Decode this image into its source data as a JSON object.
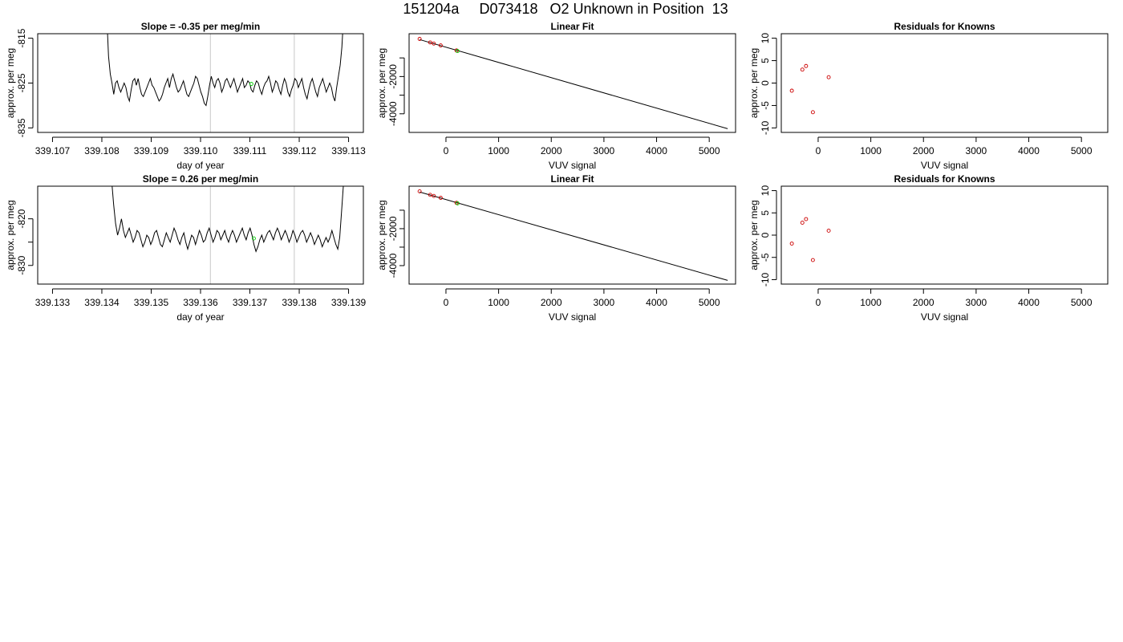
{
  "page": {
    "title": "151204a     D073418   O2 Unknown in Position  13"
  },
  "chart_data": [
    {
      "id": "slope1",
      "type": "line",
      "title": "Slope =  -0.35  per meg/min",
      "xlabel": "day of year",
      "ylabel": "approx. per meg",
      "xlim": [
        339.1067,
        339.1133
      ],
      "ylim": [
        -836,
        -814
      ],
      "xticks": [
        339.107,
        339.108,
        339.109,
        339.11,
        339.111,
        339.112,
        339.113
      ],
      "xtick_labels": [
        "339.107",
        "339.108",
        "339.109",
        "339.110",
        "339.111",
        "339.112",
        "339.113"
      ],
      "yticks": [
        -835,
        -825,
        -815
      ],
      "ytick_labels": [
        "-835",
        "-825",
        "-815"
      ],
      "grid": false,
      "vlines": [
        339.1102,
        339.1119
      ],
      "series": [
        {
          "color": "#000000",
          "x_start": 339.1081,
          "x_end": 339.1129,
          "values": [
            -810,
            -819,
            -823,
            -825,
            -827.5,
            -825,
            -824.5,
            -826,
            -827,
            -826,
            -825,
            -826,
            -828,
            -829,
            -826.5,
            -824.5,
            -824,
            -825.5,
            -824,
            -826,
            -827.5,
            -828,
            -827,
            -826,
            -825,
            -824,
            -825.5,
            -826,
            -827,
            -828,
            -829,
            -828.5,
            -827.5,
            -826,
            -825,
            -824,
            -826,
            -824,
            -823,
            -824.5,
            -826,
            -827,
            -826.5,
            -825.5,
            -824.5,
            -826,
            -827.5,
            -828,
            -827,
            -826,
            -825,
            -823.5,
            -824,
            -825.5,
            -827,
            -828,
            -829.5,
            -830,
            -828,
            -825.5,
            -823.5,
            -825,
            -826,
            -824.5,
            -824,
            -825,
            -827,
            -826,
            -824.5,
            -824,
            -825,
            -826,
            -825,
            -824,
            -825.5,
            -827,
            -826,
            -825,
            -824,
            -826,
            -825.5,
            -824.5,
            -825,
            -826.5,
            -827,
            -825.5,
            -824.5,
            -825,
            -826.5,
            -827.5,
            -826,
            -825,
            -824.5,
            -823.5,
            -825,
            -827,
            -826,
            -824.5,
            -825,
            -826.5,
            -827.5,
            -825.5,
            -824,
            -825,
            -827,
            -828,
            -826.5,
            -825.5,
            -824,
            -824.5,
            -826,
            -825,
            -824,
            -826,
            -827.5,
            -828.5,
            -826.5,
            -825,
            -824,
            -825.5,
            -827,
            -828,
            -826,
            -825,
            -824,
            -825.5,
            -827,
            -826,
            -825,
            -826,
            -828,
            -829,
            -826,
            -823.5,
            -821,
            -817,
            -810
          ]
        }
      ],
      "highlight_points": [
        {
          "x": 339.11103,
          "y": -825.2,
          "color": "#00cc00"
        }
      ]
    },
    {
      "id": "fit1",
      "type": "scatter",
      "title": "Linear Fit",
      "xlabel": "VUV signal",
      "ylabel": "approx. per meg",
      "xlim": [
        -700,
        5500
      ],
      "ylim": [
        -5000,
        300
      ],
      "xticks": [
        0,
        1000,
        2000,
        3000,
        4000,
        5000
      ],
      "xtick_labels": [
        "0",
        "1000",
        "2000",
        "3000",
        "4000",
        "5000"
      ],
      "yticks": [
        -4000,
        -3000,
        -2000,
        -1000
      ],
      "ytick_labels": [
        "-4000",
        "",
        "-2000",
        ""
      ],
      "grid": false,
      "fit_line": {
        "x": [
          -500,
          5350
        ],
        "y": [
          -15,
          -4800
        ],
        "color": "#000000"
      },
      "points": [
        {
          "x": -500,
          "y": 20,
          "color": "#cc0000"
        },
        {
          "x": -300,
          "y": -170,
          "color": "#cc0000"
        },
        {
          "x": -230,
          "y": -230,
          "color": "#cc0000"
        },
        {
          "x": -100,
          "y": -330,
          "color": "#cc0000"
        },
        {
          "x": 200,
          "y": -600,
          "color": "#cc0000"
        }
      ],
      "highlight_points": [
        {
          "x": 220,
          "y": -630,
          "color": "#00cc00"
        }
      ]
    },
    {
      "id": "resid1",
      "type": "scatter",
      "title": "Residuals for Knowns",
      "xlabel": "VUV signal",
      "ylabel": "approx. per meg",
      "xlim": [
        -700,
        5500
      ],
      "ylim": [
        -11,
        11
      ],
      "xticks": [
        0,
        1000,
        2000,
        3000,
        4000,
        5000
      ],
      "xtick_labels": [
        "0",
        "1000",
        "2000",
        "3000",
        "4000",
        "5000"
      ],
      "yticks": [
        -10,
        -5,
        0,
        5,
        10
      ],
      "ytick_labels": [
        "-10",
        "-5",
        "0",
        "5",
        "10"
      ],
      "grid": false,
      "points": [
        {
          "x": -500,
          "y": -1.7,
          "color": "#cc0000"
        },
        {
          "x": -300,
          "y": 3.0,
          "color": "#cc0000"
        },
        {
          "x": -230,
          "y": 3.8,
          "color": "#cc0000"
        },
        {
          "x": -100,
          "y": -6.5,
          "color": "#cc0000"
        },
        {
          "x": 200,
          "y": 1.3,
          "color": "#cc0000"
        }
      ]
    },
    {
      "id": "slope2",
      "type": "line",
      "title": "Slope =  0.26  per meg/min",
      "xlabel": "day of year",
      "ylabel": "approx. per meg",
      "xlim": [
        339.1327,
        339.1393
      ],
      "ylim": [
        -834,
        -813
      ],
      "xticks": [
        339.133,
        339.134,
        339.135,
        339.136,
        339.137,
        339.138,
        339.139
      ],
      "xtick_labels": [
        "339.133",
        "339.134",
        "339.135",
        "339.136",
        "339.137",
        "339.138",
        "339.139"
      ],
      "yticks": [
        -830,
        -825,
        -820
      ],
      "ytick_labels": [
        "-830",
        "",
        "-820"
      ],
      "grid": false,
      "vlines": [
        339.1362,
        339.1379
      ],
      "series": [
        {
          "color": "#000000",
          "x_start": 339.1342,
          "x_end": 339.1389,
          "values": [
            -812,
            -817,
            -821,
            -823.5,
            -822,
            -820,
            -822.5,
            -824,
            -823,
            -822,
            -823.5,
            -825,
            -824,
            -822.5,
            -823,
            -824.5,
            -826,
            -825,
            -823.5,
            -824,
            -825.5,
            -824.5,
            -823,
            -822.5,
            -824,
            -825.5,
            -826,
            -824.5,
            -823,
            -824,
            -825,
            -823.5,
            -822,
            -823,
            -824.5,
            -825.5,
            -824,
            -823,
            -825,
            -826.5,
            -825,
            -823.5,
            -824,
            -825.5,
            -824,
            -822.5,
            -823.5,
            -825,
            -824.5,
            -823,
            -822,
            -823.5,
            -825,
            -824,
            -822.5,
            -823,
            -824.5,
            -823.5,
            -822.5,
            -824,
            -825,
            -823.5,
            -822.5,
            -823.5,
            -825,
            -824,
            -823,
            -822,
            -823.5,
            -824.5,
            -823,
            -822,
            -823.5,
            -825.5,
            -827,
            -826,
            -824.5,
            -823.5,
            -825,
            -824,
            -823,
            -822.5,
            -823.5,
            -824.5,
            -823,
            -822,
            -823,
            -824.5,
            -823.5,
            -822.5,
            -823.5,
            -825,
            -824,
            -822.5,
            -823.5,
            -825,
            -824,
            -823,
            -822.5,
            -823.5,
            -825,
            -824,
            -823,
            -824,
            -825.5,
            -824.5,
            -823.5,
            -824.5,
            -826,
            -825,
            -824,
            -825,
            -824,
            -822.5,
            -824,
            -825.5,
            -826.5,
            -824,
            -818,
            -812
          ]
        }
      ],
      "highlight_points": [
        {
          "x": 339.13708,
          "y": -824.2,
          "color": "#00cc00"
        }
      ]
    },
    {
      "id": "fit2",
      "type": "scatter",
      "title": "Linear Fit",
      "xlabel": "VUV signal",
      "ylabel": "approx. per meg",
      "xlim": [
        -700,
        5500
      ],
      "ylim": [
        -5000,
        300
      ],
      "xticks": [
        0,
        1000,
        2000,
        3000,
        4000,
        5000
      ],
      "xtick_labels": [
        "0",
        "1000",
        "2000",
        "3000",
        "4000",
        "5000"
      ],
      "yticks": [
        -4000,
        -3000,
        -2000,
        -1000
      ],
      "ytick_labels": [
        "-4000",
        "",
        "-2000",
        ""
      ],
      "grid": false,
      "fit_line": {
        "x": [
          -500,
          5350
        ],
        "y": [
          -15,
          -4800
        ],
        "color": "#000000"
      },
      "points": [
        {
          "x": -500,
          "y": 20,
          "color": "#cc0000"
        },
        {
          "x": -300,
          "y": -170,
          "color": "#cc0000"
        },
        {
          "x": -230,
          "y": -230,
          "color": "#cc0000"
        },
        {
          "x": -100,
          "y": -330,
          "color": "#cc0000"
        },
        {
          "x": 200,
          "y": -600,
          "color": "#cc0000"
        }
      ],
      "highlight_points": [
        {
          "x": 220,
          "y": -630,
          "color": "#00cc00"
        }
      ]
    },
    {
      "id": "resid2",
      "type": "scatter",
      "title": "Residuals for Knowns",
      "xlabel": "VUV signal",
      "ylabel": "approx. per meg",
      "xlim": [
        -700,
        5500
      ],
      "ylim": [
        -11,
        11
      ],
      "xticks": [
        0,
        1000,
        2000,
        3000,
        4000,
        5000
      ],
      "xtick_labels": [
        "0",
        "1000",
        "2000",
        "3000",
        "4000",
        "5000"
      ],
      "yticks": [
        -10,
        -5,
        0,
        5,
        10
      ],
      "ytick_labels": [
        "-10",
        "-5",
        "0",
        "5",
        "10"
      ],
      "grid": false,
      "points": [
        {
          "x": -500,
          "y": -1.9,
          "color": "#cc0000"
        },
        {
          "x": -300,
          "y": 2.8,
          "color": "#cc0000"
        },
        {
          "x": -230,
          "y": 3.6,
          "color": "#cc0000"
        },
        {
          "x": -100,
          "y": -5.6,
          "color": "#cc0000"
        },
        {
          "x": 200,
          "y": 1.0,
          "color": "#cc0000"
        }
      ]
    }
  ]
}
